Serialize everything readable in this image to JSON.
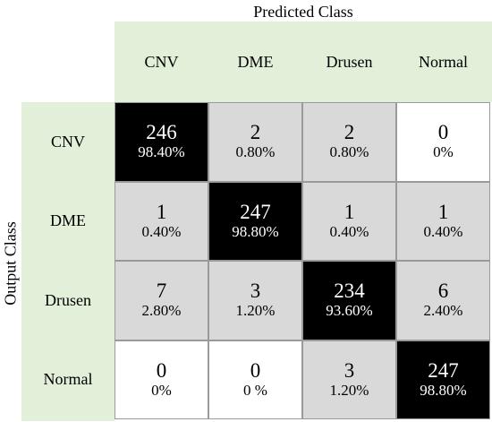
{
  "chart_data": {
    "type": "heatmap",
    "title": "Predicted Class",
    "ylabel": "Output Class",
    "columns": [
      "CNV",
      "DME",
      "Drusen",
      "Normal"
    ],
    "rows": [
      "CNV",
      "DME",
      "Drusen",
      "Normal"
    ],
    "counts": [
      [
        246,
        2,
        2,
        0
      ],
      [
        1,
        247,
        1,
        1
      ],
      [
        7,
        3,
        234,
        6
      ],
      [
        0,
        0,
        3,
        247
      ]
    ],
    "percents": [
      [
        "98.40%",
        "0.80%",
        "0.80%",
        "0%"
      ],
      [
        "0.40%",
        "98.80%",
        "0.40%",
        "0.40%"
      ],
      [
        "2.80%",
        "1.20%",
        "93.60%",
        "2.40%"
      ],
      [
        "0%",
        "0 %",
        "1.20%",
        "98.80%"
      ]
    ],
    "shades": [
      [
        "black",
        "gray",
        "gray",
        "white"
      ],
      [
        "gray",
        "black",
        "gray",
        "gray"
      ],
      [
        "gray",
        "gray",
        "black",
        "gray"
      ],
      [
        "white",
        "white",
        "gray",
        "black"
      ]
    ]
  },
  "colors": {
    "header_band": "#e2efd9",
    "black": "#000000",
    "gray": "#d9d9d9",
    "white": "#ffffff"
  }
}
